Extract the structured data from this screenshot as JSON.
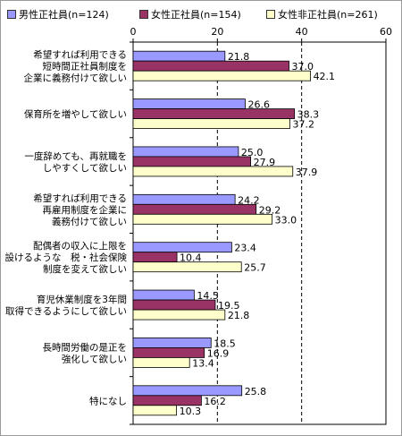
{
  "chart_data": {
    "type": "bar",
    "orientation": "horizontal",
    "title": "",
    "xlabel": "",
    "ylabel": "",
    "xlim": [
      0,
      60
    ],
    "ticks": [
      0,
      20,
      40,
      60
    ],
    "gridlines": "dashed vertical at 20 and 40",
    "legend_position": "top",
    "categories": [
      [
        "希望すれば利用できる",
        "短時間正社員制度を",
        "企業に義務付けて欲しい"
      ],
      [
        "保育所を増やして欲しい"
      ],
      [
        "一度辞めても、再就職を",
        "しやすくして欲しい"
      ],
      [
        "希望すれば利用できる",
        "再雇用制度を企業に",
        "義務付けて欲しい"
      ],
      [
        "配偶者の収入に上限を",
        "設けるような　税・社会保険",
        "制度を変えて欲しい"
      ],
      [
        "育児休業制度を3年間",
        "取得できるようにして欲しい"
      ],
      [
        "長時間労働の是正を",
        "強化して欲しい"
      ],
      [
        "特になし"
      ]
    ],
    "series": [
      {
        "name": "男性正社員(n=124)",
        "color": "#9999ff",
        "values": [
          21.8,
          26.6,
          25.0,
          24.2,
          23.4,
          14.5,
          18.5,
          25.8
        ]
      },
      {
        "name": "女性正社員(n=154)",
        "color": "#993366",
        "values": [
          37.0,
          38.3,
          27.9,
          29.2,
          10.4,
          19.5,
          16.9,
          16.2
        ]
      },
      {
        "name": "女性非正社員(n=261)",
        "color": "#ffffcc",
        "values": [
          42.1,
          37.2,
          37.9,
          33.0,
          25.7,
          21.8,
          13.4,
          10.3
        ]
      }
    ]
  }
}
